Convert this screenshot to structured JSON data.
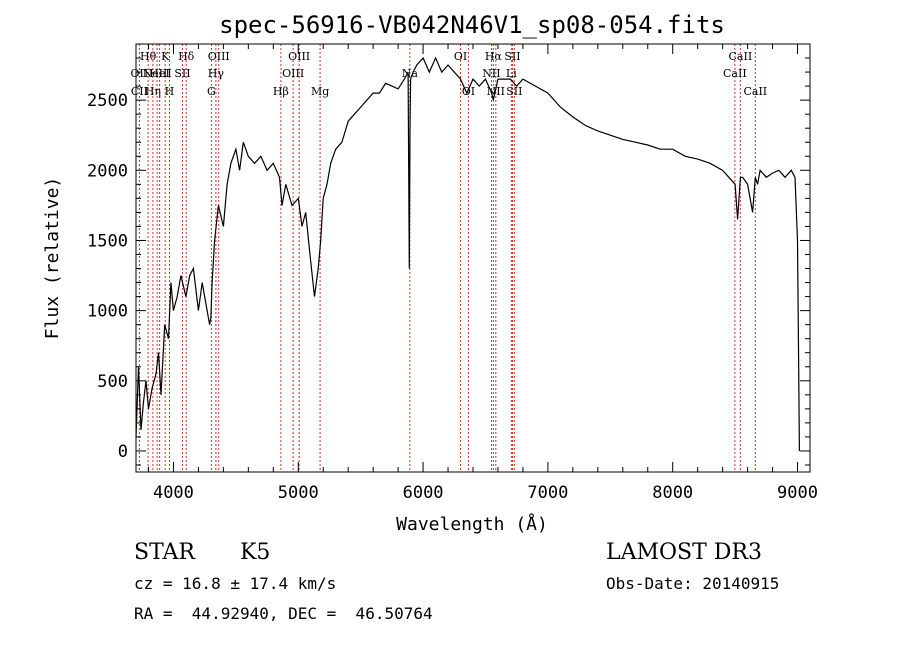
{
  "chart_data": {
    "type": "line",
    "title": "spec-56916-VB042N46V1_sp08-054.fits",
    "xlabel": "Wavelength (Å)",
    "ylabel": "Flux (relative)",
    "xlim": [
      3700,
      9100
    ],
    "ylim": [
      -150,
      2900
    ],
    "x_ticks": [
      4000,
      5000,
      6000,
      7000,
      8000,
      9000
    ],
    "y_ticks": [
      0,
      500,
      1000,
      1500,
      2000,
      2500
    ],
    "x_tick_labels": [
      "4000",
      "5000",
      "6000",
      "7000",
      "8000",
      "9000"
    ],
    "y_tick_labels": [
      "0",
      "500",
      "1000",
      "1500",
      "2000",
      "2500"
    ],
    "grid": false,
    "series": [
      {
        "name": "spectrum",
        "x": [
          3700,
          3720,
          3740,
          3760,
          3780,
          3800,
          3830,
          3860,
          3880,
          3900,
          3930,
          3960,
          3980,
          4000,
          4030,
          4060,
          4100,
          4130,
          4160,
          4200,
          4230,
          4260,
          4290,
          4300,
          4310,
          4330,
          4360,
          4400,
          4430,
          4460,
          4500,
          4530,
          4560,
          4600,
          4650,
          4700,
          4750,
          4800,
          4850,
          4870,
          4900,
          4950,
          5000,
          5030,
          5060,
          5100,
          5130,
          5160,
          5180,
          5200,
          5230,
          5260,
          5300,
          5350,
          5400,
          5450,
          5500,
          5550,
          5600,
          5650,
          5700,
          5750,
          5800,
          5850,
          5880,
          5890,
          5895,
          5900,
          5920,
          5950,
          6000,
          6050,
          6100,
          6150,
          6200,
          6250,
          6300,
          6350,
          6400,
          6450,
          6500,
          6550,
          6563,
          6600,
          6650,
          6700,
          6750,
          6800,
          6900,
          7000,
          7100,
          7200,
          7300,
          7400,
          7500,
          7600,
          7700,
          7800,
          7900,
          8000,
          8100,
          8200,
          8300,
          8400,
          8450,
          8500,
          8520,
          8542,
          8560,
          8600,
          8640,
          8662,
          8680,
          8700,
          8750,
          8800,
          8850,
          8900,
          8950,
          8980,
          9000,
          9010,
          9015
        ],
        "values": [
          100,
          600,
          150,
          350,
          500,
          300,
          450,
          550,
          700,
          400,
          900,
          800,
          1200,
          1000,
          1100,
          1250,
          1100,
          1250,
          1300,
          1000,
          1200,
          1050,
          900,
          950,
          1200,
          1500,
          1750,
          1600,
          1900,
          2050,
          2150,
          2000,
          2200,
          2100,
          2050,
          2100,
          2000,
          2050,
          1950,
          1750,
          1900,
          1750,
          1800,
          1600,
          1700,
          1350,
          1100,
          1300,
          1500,
          1800,
          1900,
          2050,
          2150,
          2200,
          2350,
          2400,
          2450,
          2500,
          2550,
          2550,
          2620,
          2600,
          2580,
          2650,
          2700,
          1300,
          2300,
          2650,
          2700,
          2750,
          2800,
          2700,
          2800,
          2700,
          2750,
          2700,
          2650,
          2550,
          2650,
          2600,
          2650,
          2550,
          2500,
          2650,
          2650,
          2650,
          2600,
          2650,
          2600,
          2550,
          2450,
          2380,
          2320,
          2280,
          2250,
          2220,
          2200,
          2180,
          2150,
          2150,
          2100,
          2080,
          2050,
          2000,
          1950,
          1900,
          1650,
          1950,
          1950,
          1900,
          1700,
          1950,
          1900,
          2000,
          1950,
          1980,
          2000,
          1950,
          2000,
          1950,
          1500,
          500,
          0
        ]
      }
    ],
    "line_markers": [
      {
        "wl": 3727,
        "labels": [
          "",
          "OII",
          "CII"
        ]
      },
      {
        "wl": 3797,
        "labels": [
          "Hθ",
          "",
          ""
        ]
      },
      {
        "wl": 3835,
        "labels": [
          "",
          "",
          "Hη"
        ]
      },
      {
        "wl": 3869,
        "labels": [
          "",
          "NeIII",
          ""
        ]
      },
      {
        "wl": 3889,
        "labels": [
          "",
          "HeI",
          ""
        ]
      },
      {
        "wl": 3934,
        "labels": [
          "K",
          "",
          ""
        ]
      },
      {
        "wl": 3968,
        "labels": [
          "",
          "",
          "H"
        ]
      },
      {
        "wl": 4072,
        "labels": [
          "",
          "SII",
          ""
        ]
      },
      {
        "wl": 4102,
        "labels": [
          "Hδ",
          "",
          ""
        ]
      },
      {
        "wl": 4304,
        "labels": [
          "",
          "",
          "G"
        ]
      },
      {
        "wl": 4340,
        "labels": [
          "",
          "Hγ",
          ""
        ]
      },
      {
        "wl": 4363,
        "labels": [
          "OIII",
          "",
          ""
        ]
      },
      {
        "wl": 4861,
        "labels": [
          "",
          "",
          "Hβ"
        ]
      },
      {
        "wl": 4959,
        "labels": [
          "",
          "OIII",
          ""
        ]
      },
      {
        "wl": 5007,
        "labels": [
          "OIII",
          "",
          ""
        ]
      },
      {
        "wl": 5175,
        "labels": [
          "",
          "",
          "Mg"
        ]
      },
      {
        "wl": 5894,
        "labels": [
          "",
          "Na",
          ""
        ]
      },
      {
        "wl": 6300,
        "labels": [
          "OI",
          "",
          ""
        ]
      },
      {
        "wl": 6363,
        "labels": [
          "",
          "",
          "OI"
        ]
      },
      {
        "wl": 6548,
        "labels": [
          "",
          "NII",
          ""
        ]
      },
      {
        "wl": 6563,
        "labels": [
          "Hα",
          "",
          ""
        ]
      },
      {
        "wl": 6583,
        "labels": [
          "",
          "",
          "NII"
        ]
      },
      {
        "wl": 6707,
        "labels": [
          "",
          "Li",
          ""
        ]
      },
      {
        "wl": 6716,
        "labels": [
          "SII",
          "",
          ""
        ]
      },
      {
        "wl": 6731,
        "labels": [
          "",
          "",
          "SII"
        ]
      },
      {
        "wl": 8498,
        "labels": [
          "",
          "CaII",
          ""
        ]
      },
      {
        "wl": 8542,
        "labels": [
          "CaII",
          "",
          ""
        ]
      },
      {
        "wl": 8662,
        "labels": [
          "",
          "",
          "CaII"
        ]
      }
    ]
  },
  "info": {
    "object_class": "STAR",
    "subclass": "K5",
    "survey": "LAMOST DR3",
    "redshift": "cz = 16.8 ± 17.4 km/s",
    "obs_date": "Obs-Date: 20140915",
    "coords": "RA =  44.92940, DEC =  46.50764"
  },
  "colors": {
    "marker_line": "#c0392b",
    "spectrum": "#000000",
    "background": "#ffffff"
  }
}
